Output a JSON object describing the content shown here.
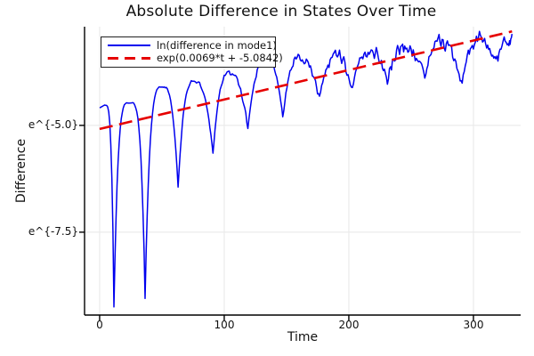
{
  "title": "Absolute Difference in States Over Time",
  "axes": {
    "xlabel": "Time",
    "ylabel": "Difference"
  },
  "legend": {
    "entries": [
      {
        "label": "ln(difference in mode1)"
      },
      {
        "label": "exp(0.0069*t + -5.0842)"
      }
    ]
  },
  "colors": {
    "series1": "#0000ee",
    "series2": "#e60000",
    "grid": "#e8e8e8",
    "axis": "#000000"
  },
  "chart_data": {
    "type": "line",
    "title": "Absolute Difference in States Over Time",
    "xlabel": "Time",
    "ylabel": "Difference",
    "grid": true,
    "legend_position": "top-left",
    "x_ticks": [
      0,
      100,
      200,
      300
    ],
    "y_ticks": [
      {
        "ln": -5.0,
        "label": "e^{-5.0}"
      },
      {
        "ln": -7.5,
        "label": "e^{-7.5}"
      }
    ],
    "xlim": [
      -12.1,
      337.9
    ],
    "ylim_ln": [
      -9.44,
      -2.69
    ],
    "series": [
      {
        "name": "ln(difference in mode1)",
        "color": "#0000ee",
        "style": "solid",
        "kind": "noisy oscillatory ln|difference| curve; anchors are [t, ln_value, p=peak|c=cusp]",
        "anchors": [
          [
            0,
            -4.58,
            "p"
          ],
          [
            4,
            -4.52,
            "p"
          ],
          [
            11.5,
            -9.25,
            "c"
          ],
          [
            24,
            -4.47,
            "p"
          ],
          [
            36.5,
            -9.05,
            "c"
          ],
          [
            51,
            -4.1,
            "p"
          ],
          [
            63,
            -6.45,
            "c"
          ],
          [
            76,
            -3.97,
            "p"
          ],
          [
            91,
            -5.64,
            "c"
          ],
          [
            104,
            -3.78,
            "p"
          ],
          [
            119,
            -5.07,
            "c"
          ],
          [
            134,
            -3.45,
            "p"
          ],
          [
            147,
            -4.72,
            "c"
          ],
          [
            161,
            -3.42,
            "p"
          ],
          [
            176.5,
            -4.45,
            "c"
          ],
          [
            190,
            -3.33,
            "p"
          ],
          [
            202,
            -4.25,
            "c"
          ],
          [
            218,
            -3.25,
            "p"
          ],
          [
            231,
            -3.97,
            "c"
          ],
          [
            244,
            -3.17,
            "p"
          ],
          [
            261,
            -3.83,
            "c"
          ],
          [
            274,
            -3.06,
            "p"
          ],
          [
            291,
            -3.96,
            "c"
          ],
          [
            304,
            -3.0,
            "p"
          ],
          [
            318,
            -3.58,
            "c"
          ],
          [
            328,
            -3.02,
            "p"
          ],
          [
            331,
            -2.93,
            "p"
          ]
        ],
        "noise_profile": [
          [
            0,
            0.012
          ],
          [
            50,
            0.02
          ],
          [
            90,
            0.04
          ],
          [
            120,
            0.06
          ],
          [
            150,
            0.09
          ],
          [
            180,
            0.12
          ],
          [
            210,
            0.13
          ],
          [
            250,
            0.15
          ],
          [
            331,
            0.16
          ]
        ],
        "noise_seed": 42
      },
      {
        "name": "exp(0.0069*t + -5.0842)",
        "color": "#e60000",
        "style": "dashed",
        "kind": "exponential-fit",
        "slope": 0.0069,
        "intercept": -5.0842,
        "t_range": [
          0,
          331
        ]
      }
    ]
  }
}
